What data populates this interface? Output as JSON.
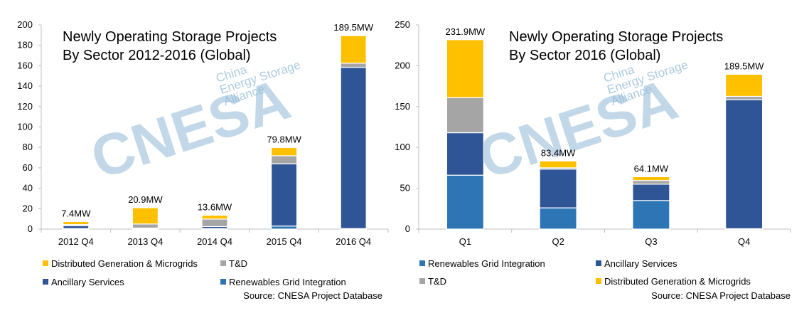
{
  "colors": {
    "Distributed Generation & Microgrids": "#ffc000",
    "T&D": "#a5a5a5",
    "Ancillary Services": "#2f5597",
    "Renewables Grid Integration": "#2e75b6",
    "bar_stroke": "#ffffff",
    "axis": "#bfbfbf",
    "watermark": "#8fb8d6",
    "watermark_accent": "#f4b183"
  },
  "watermark": {
    "main": "CNESA",
    "lines": [
      "China",
      "Energy Storage",
      "Alliance"
    ]
  },
  "chart_data": [
    {
      "type": "bar",
      "stacked": true,
      "title_lines": [
        "Newly Operating Storage Projects",
        "By Sector 2012-2016 (Global)"
      ],
      "categories": [
        "2012 Q4",
        "2013 Q4",
        "2014 Q4",
        "2015 Q4",
        "2016 Q4"
      ],
      "ylim": [
        0,
        200
      ],
      "yticks": [
        0,
        20,
        40,
        60,
        80,
        100,
        120,
        140,
        160,
        180,
        200
      ],
      "series": [
        {
          "name": "Renewables Grid Integration",
          "values": [
            0.5,
            0.3,
            0.5,
            3.0,
            0.5
          ]
        },
        {
          "name": "Ancillary Services",
          "values": [
            2.9,
            0.7,
            2.0,
            61.0,
            158.0
          ]
        },
        {
          "name": "T&D",
          "values": [
            1.0,
            4.0,
            7.3,
            7.8,
            4.0
          ]
        },
        {
          "name": "Distributed Generation & Microgrids",
          "values": [
            3.0,
            15.9,
            3.8,
            8.0,
            27.0
          ]
        }
      ],
      "totals_labels": [
        "7.4MW",
        "20.9MW",
        "13.6MW",
        "79.8MW",
        "189.5MW"
      ],
      "legend": [
        "Distributed Generation & Microgrids",
        "T&D",
        "Ancillary Services",
        "Renewables Grid Integration"
      ],
      "source": "Source: CNESA Project Database",
      "grid": false,
      "legend_position": "bottom"
    },
    {
      "type": "bar",
      "stacked": true,
      "title_lines": [
        "Newly Operating Storage Projects",
        "By Sector 2016 (Global)"
      ],
      "categories": [
        "Q1",
        "Q2",
        "Q3",
        "Q4"
      ],
      "ylim": [
        0,
        250
      ],
      "yticks": [
        0,
        50,
        100,
        150,
        200,
        250
      ],
      "series": [
        {
          "name": "Renewables Grid Integration",
          "values": [
            66.0,
            26.0,
            35.0,
            0.5
          ]
        },
        {
          "name": "Ancillary Services",
          "values": [
            52.0,
            47.5,
            20.0,
            158.0
          ]
        },
        {
          "name": "T&D",
          "values": [
            43.0,
            1.5,
            4.5,
            4.0
          ]
        },
        {
          "name": "Distributed Generation & Microgrids",
          "values": [
            70.9,
            8.4,
            4.6,
            27.0
          ]
        }
      ],
      "totals_labels": [
        "231.9MW",
        "83.4MW",
        "64.1MW",
        "189.5MW"
      ],
      "legend": [
        "Renewables Grid Integration",
        "Ancillary Services",
        "T&D",
        "Distributed Generation & Microgrids"
      ],
      "source": "Source: CNESA Project Database",
      "grid": false,
      "legend_position": "bottom"
    }
  ]
}
